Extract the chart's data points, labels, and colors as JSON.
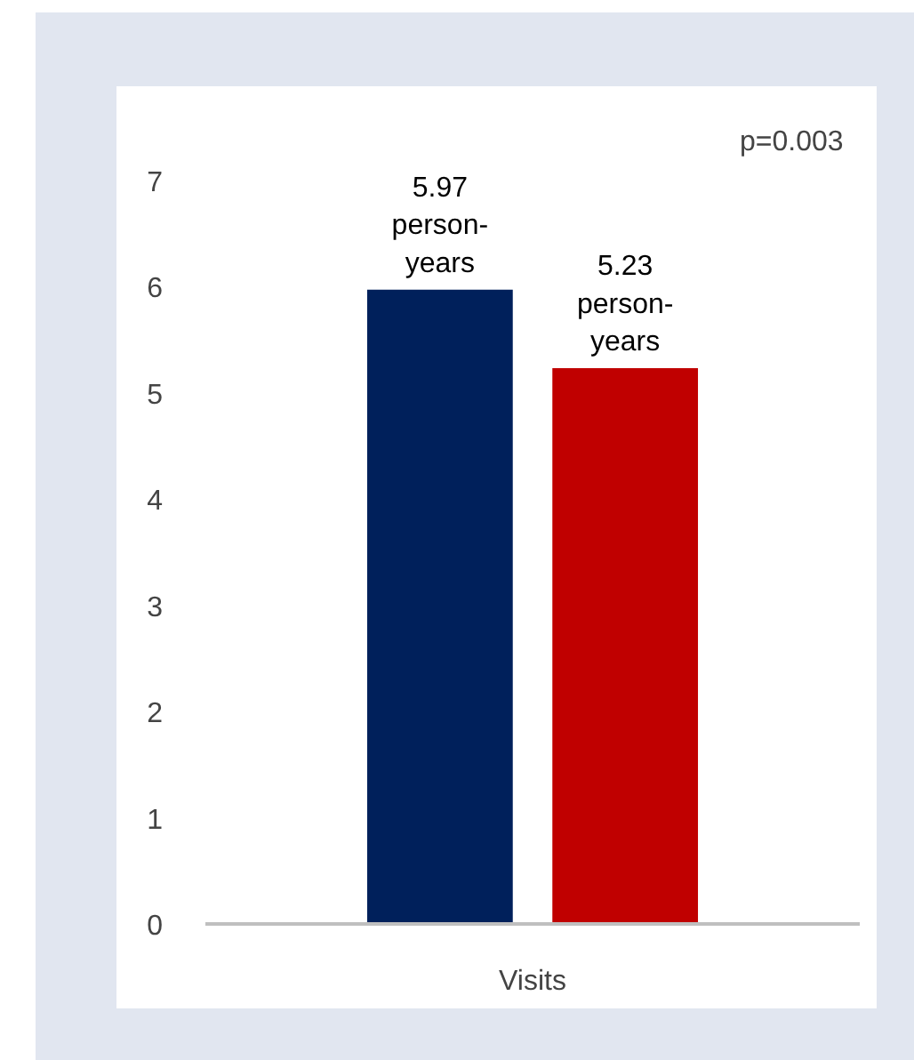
{
  "chart_data": {
    "type": "bar",
    "categories": [
      "Visits"
    ],
    "series": [
      {
        "color": "#00205b",
        "values": [
          5.97
        ],
        "value_labels": [
          "5.97 person-years"
        ]
      },
      {
        "color": "#c00000",
        "values": [
          5.23
        ],
        "value_labels": [
          "5.23 person-years"
        ]
      }
    ],
    "ylim": [
      0,
      7.7
    ],
    "yticks": [
      0,
      1,
      2,
      3,
      4,
      5,
      6,
      7
    ],
    "annotations": [
      "p=0.003"
    ]
  }
}
